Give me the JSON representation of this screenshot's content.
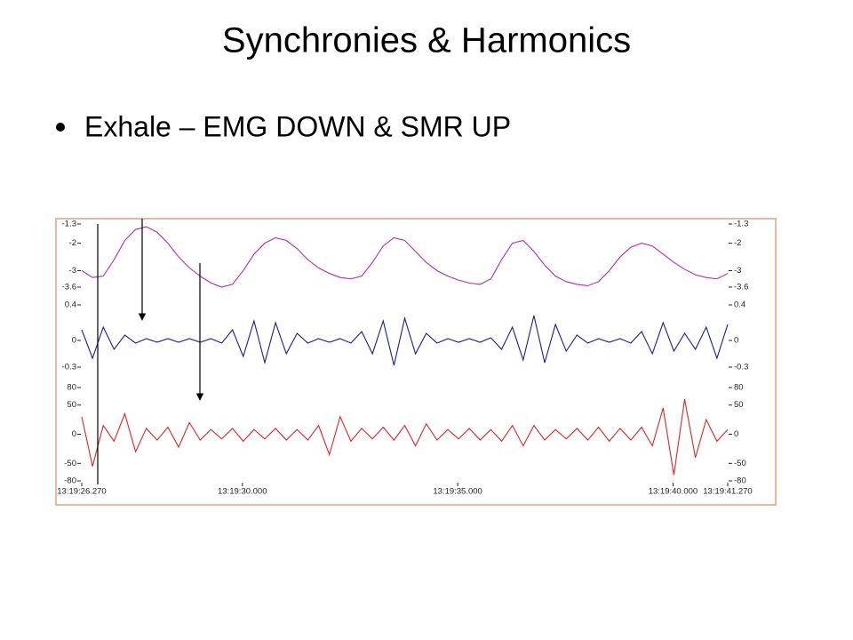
{
  "title": "Synchronies & Harmonics",
  "bullets": [
    "Exhale – EMG DOWN & SMR UP"
  ],
  "chart_data": [
    {
      "type": "line",
      "color": "#b02cb0",
      "xlim": [
        26.27,
        41.27
      ],
      "ylim": [
        -3.6,
        -1.3
      ],
      "yticks": [
        -1.3,
        -2,
        -3,
        -3.6
      ],
      "x": [
        26.27,
        26.52,
        26.77,
        27.02,
        27.27,
        27.52,
        27.77,
        28.02,
        28.27,
        28.52,
        28.77,
        29.02,
        29.27,
        29.52,
        29.77,
        30.02,
        30.27,
        30.52,
        30.77,
        31.02,
        31.27,
        31.52,
        31.77,
        32.02,
        32.27,
        32.52,
        32.77,
        33.02,
        33.27,
        33.52,
        33.77,
        34.02,
        34.27,
        34.52,
        34.77,
        35.02,
        35.27,
        35.52,
        35.77,
        36.02,
        36.27,
        36.52,
        36.77,
        37.02,
        37.27,
        37.52,
        37.77,
        38.02,
        38.27,
        38.52,
        38.77,
        39.02,
        39.27,
        39.52,
        39.77,
        40.02,
        40.27,
        40.52,
        40.77,
        41.02,
        41.27
      ],
      "values": [
        -3.0,
        -3.25,
        -3.2,
        -2.6,
        -1.9,
        -1.5,
        -1.4,
        -1.6,
        -2.0,
        -2.5,
        -2.9,
        -3.2,
        -3.45,
        -3.6,
        -3.5,
        -3.0,
        -2.4,
        -2.0,
        -1.8,
        -1.9,
        -2.2,
        -2.6,
        -2.9,
        -3.1,
        -3.25,
        -3.3,
        -3.2,
        -2.7,
        -2.1,
        -1.8,
        -1.9,
        -2.3,
        -2.7,
        -3.0,
        -3.2,
        -3.35,
        -3.45,
        -3.5,
        -3.3,
        -2.6,
        -2.0,
        -1.9,
        -2.3,
        -2.8,
        -3.2,
        -3.4,
        -3.5,
        -3.55,
        -3.4,
        -3.0,
        -2.5,
        -2.15,
        -2.0,
        -2.1,
        -2.4,
        -2.7,
        -2.95,
        -3.15,
        -3.25,
        -3.3,
        -3.1
      ]
    },
    {
      "type": "line",
      "color": "#1c1c8c",
      "xlim": [
        26.27,
        41.27
      ],
      "ylim": [
        -0.3,
        0.4
      ],
      "yticks": [
        0.4,
        0,
        -0.3
      ],
      "x": [
        26.27,
        26.52,
        26.77,
        27.02,
        27.27,
        27.52,
        27.77,
        28.02,
        28.27,
        28.52,
        28.77,
        29.02,
        29.27,
        29.52,
        29.77,
        30.02,
        30.27,
        30.52,
        30.77,
        31.02,
        31.27,
        31.52,
        31.77,
        32.02,
        32.27,
        32.52,
        32.77,
        33.02,
        33.27,
        33.52,
        33.77,
        34.02,
        34.27,
        34.52,
        34.77,
        35.02,
        35.27,
        35.52,
        35.77,
        36.02,
        36.27,
        36.52,
        36.77,
        37.02,
        37.27,
        37.52,
        37.77,
        38.02,
        38.27,
        38.52,
        38.77,
        39.02,
        39.27,
        39.52,
        39.77,
        40.02,
        40.27,
        40.52,
        40.77,
        41.02,
        41.27
      ],
      "values": [
        0.12,
        -0.2,
        0.15,
        -0.1,
        0.06,
        -0.03,
        0.02,
        -0.02,
        0.02,
        -0.02,
        0.02,
        -0.02,
        0.02,
        -0.03,
        0.12,
        -0.18,
        0.22,
        -0.25,
        0.2,
        -0.15,
        0.08,
        -0.03,
        0.02,
        -0.02,
        0.02,
        -0.03,
        0.1,
        -0.15,
        0.22,
        -0.28,
        0.25,
        -0.15,
        0.08,
        -0.03,
        0.02,
        -0.02,
        0.02,
        -0.02,
        0.03,
        -0.1,
        0.15,
        -0.22,
        0.28,
        -0.25,
        0.18,
        -0.12,
        0.06,
        -0.03,
        0.02,
        -0.02,
        0.02,
        -0.03,
        0.1,
        -0.15,
        0.2,
        -0.12,
        0.08,
        -0.1,
        0.15,
        -0.2,
        0.18
      ]
    },
    {
      "type": "line",
      "color": "#e02424",
      "xlim": [
        26.27,
        41.27
      ],
      "ylim": [
        -80,
        80
      ],
      "yticks": [
        80,
        50,
        0,
        -50,
        -80
      ],
      "xticks": [
        {
          "value": 26.27,
          "label": "13:19:26.270"
        },
        {
          "value": 30,
          "label": "13:19:30.000"
        },
        {
          "value": 35,
          "label": "13:19:35.000"
        },
        {
          "value": 40,
          "label": "13:19:40.000"
        },
        {
          "value": 41.27,
          "label": "13:19:41.270"
        }
      ],
      "x": [
        26.27,
        26.52,
        26.77,
        27.02,
        27.27,
        27.52,
        27.77,
        28.02,
        28.27,
        28.52,
        28.77,
        29.02,
        29.27,
        29.52,
        29.77,
        30.02,
        30.27,
        30.52,
        30.77,
        31.02,
        31.27,
        31.52,
        31.77,
        32.02,
        32.27,
        32.52,
        32.77,
        33.02,
        33.27,
        33.52,
        33.77,
        34.02,
        34.27,
        34.52,
        34.77,
        35.02,
        35.27,
        35.52,
        35.77,
        36.02,
        36.27,
        36.52,
        36.77,
        37.02,
        37.27,
        37.52,
        37.77,
        38.02,
        38.27,
        38.52,
        38.77,
        39.02,
        39.27,
        39.52,
        39.77,
        40.02,
        40.27,
        40.52,
        40.77,
        41.02,
        41.27
      ],
      "values": [
        30,
        -55,
        15,
        -12,
        35,
        -30,
        10,
        -10,
        12,
        -22,
        20,
        -10,
        8,
        -8,
        10,
        -12,
        8,
        -8,
        10,
        -10,
        8,
        -10,
        15,
        -35,
        30,
        -12,
        10,
        -8,
        12,
        -10,
        15,
        -20,
        18,
        -10,
        8,
        -8,
        10,
        -10,
        8,
        -12,
        15,
        -20,
        15,
        -10,
        8,
        -8,
        10,
        -10,
        12,
        -12,
        10,
        -10,
        12,
        -20,
        45,
        -70,
        60,
        -40,
        25,
        -12,
        8
      ]
    }
  ]
}
